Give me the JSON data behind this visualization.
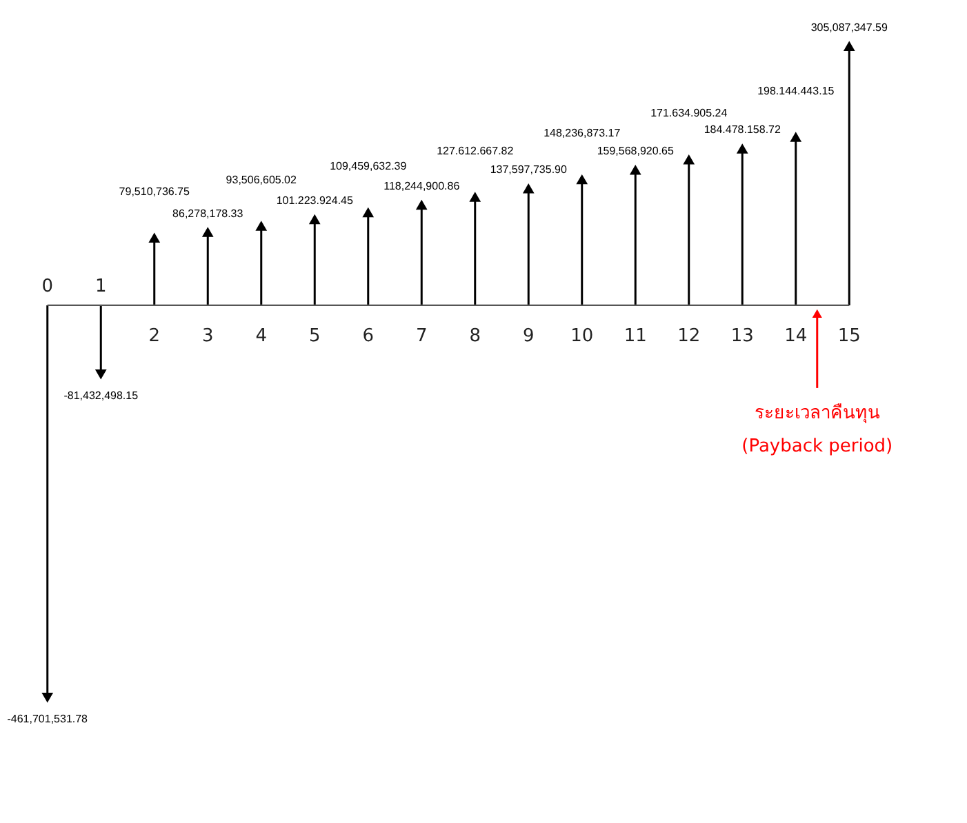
{
  "chart_data": {
    "type": "lollipop",
    "categories": [
      "0",
      "1",
      "2",
      "3",
      "4",
      "5",
      "6",
      "7",
      "8",
      "9",
      "10",
      "11",
      "12",
      "13",
      "14",
      "15"
    ],
    "values": [
      -461701531.78,
      -81432498.15,
      79510736.75,
      86278178.33,
      93506605.02,
      101223924.45,
      109459632.39,
      118244900.86,
      127612667.82,
      137597735.9,
      148236873.17,
      159568920.65,
      171634905.24,
      184478158.72,
      198144443.15,
      305087347.59
    ],
    "value_labels": [
      "-461,701,531.78",
      "-81,432,498.15",
      "79,510,736.75",
      "86,278,178.33",
      "93,506,605.02",
      "101.223.924.45",
      "109,459,632.39",
      "118,244,900.86",
      "127.612.667.82",
      "137,597,735.90",
      "148,236,873.17",
      "159,568,920.65",
      "171.634.905.24",
      "184.478.158.72",
      "198.144.443.15",
      "305,087,347.59"
    ],
    "color": "#000000",
    "marker": "triangle",
    "annotations": [
      "ระยะเวลาคืนทุน",
      "(Payback period)"
    ]
  }
}
